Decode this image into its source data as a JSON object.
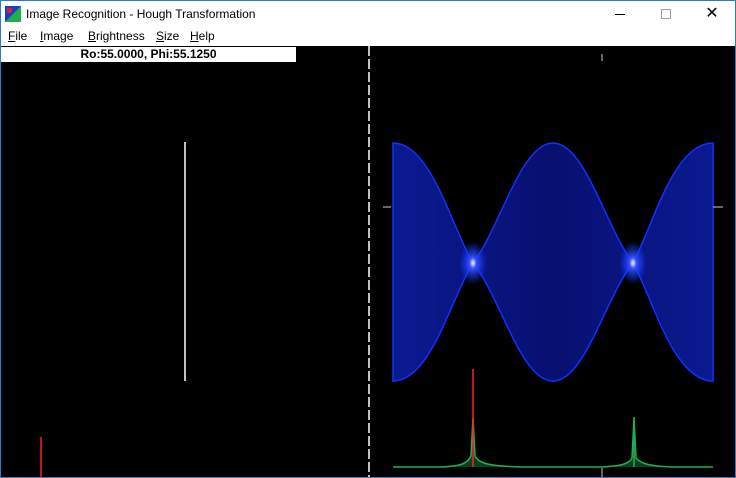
{
  "window": {
    "title": "Image Recognition - Hough Transformation",
    "controls": {
      "minimize": "—",
      "maximize": "☐",
      "close": "✕"
    }
  },
  "menu": [
    {
      "label": "File",
      "mnemonic": "F"
    },
    {
      "label": "Image",
      "mnemonic": "I"
    },
    {
      "label": "Brightness",
      "mnemonic": "B"
    },
    {
      "label": "Size",
      "mnemonic": "S"
    },
    {
      "label": "Help",
      "mnemonic": "H"
    }
  ],
  "readout": "Ro:55.0000, Phi:55.1250",
  "colors": {
    "line": "#ffffff",
    "marker": "#ff2020",
    "hough": "#1030ff",
    "histogram": "#20b050",
    "histogram_peak": "#ff2020",
    "divider": "#ffffff",
    "background": "#000000"
  },
  "icons": {
    "app": "app-icon",
    "close": "close-icon",
    "maximize": "maximize-icon",
    "minimize": "minimize-icon"
  }
}
